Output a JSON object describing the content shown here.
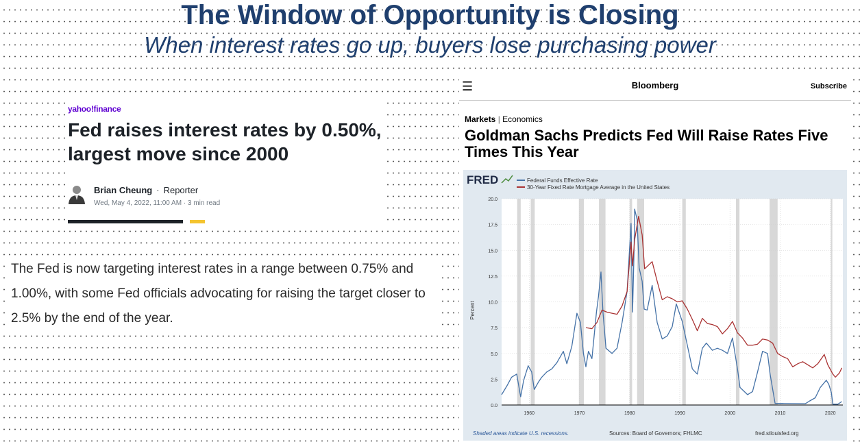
{
  "slide": {
    "title": "The Window of Opportunity is Closing",
    "subtitle": "When interest rates go up, buyers lose purchasing power"
  },
  "yahoo": {
    "logo": "yahoo!finance",
    "headline": "Fed raises interest rates by 0.50%, largest move since 2000",
    "author": "Brian Cheung",
    "sep": "·",
    "role": "Reporter",
    "meta": "Wed, May 4, 2022, 11:00 AM · 3 min read"
  },
  "quote": "The Fed is now targeting interest rates in a range between 0.75% and 1.00%, with some Fed officials advocating for raising the target closer to 2.5% by the end of the year.",
  "bloomberg": {
    "menu_icon": "hamburger-icon",
    "brand": "Bloomberg",
    "subscribe": "Subscribe",
    "section_main": "Markets",
    "section_divider": "|",
    "section_sub": "Economics",
    "headline": "Goldman Sachs Predicts Fed Will Raise Rates Five Times This Year"
  },
  "colors": {
    "title_blue": "#1f3f6e",
    "fed_funds": "#4572a7",
    "mortgage": "#aa3333",
    "recession": "#d8d8d8",
    "chart_bg": "#e1e9f0"
  },
  "chart_data": {
    "type": "line",
    "logo": "FRED",
    "ylabel": "Percent",
    "ylim": [
      0,
      20
    ],
    "xlim": [
      1954.5,
      2022.5
    ],
    "yticks": [
      "0.0",
      "2.5",
      "5.0",
      "7.5",
      "10.0",
      "12.5",
      "15.0",
      "17.5",
      "20.0"
    ],
    "ytick_values": [
      0,
      2.5,
      5,
      7.5,
      10,
      12.5,
      15,
      17.5,
      20
    ],
    "xticks": [
      "1960",
      "1970",
      "1980",
      "1990",
      "2000",
      "2010",
      "2020"
    ],
    "xtick_values": [
      1960,
      1970,
      1980,
      1990,
      2000,
      2010,
      2020
    ],
    "grid": true,
    "legend_position": "top-left",
    "recessions": [
      [
        1957.6,
        1958.3
      ],
      [
        1960.3,
        1961.1
      ],
      [
        1969.9,
        1970.9
      ],
      [
        1973.9,
        1975.2
      ],
      [
        1980.0,
        1980.5
      ],
      [
        1981.5,
        1982.9
      ],
      [
        1990.5,
        1991.2
      ],
      [
        2001.2,
        2001.9
      ],
      [
        2007.9,
        2009.5
      ],
      [
        2020.1,
        2020.4
      ]
    ],
    "series": [
      {
        "name": "Federal Funds Effective Rate",
        "x": [
          1954.5,
          1955.5,
          1956.5,
          1957.5,
          1958.3,
          1958.9,
          1959.8,
          1960.5,
          1961.0,
          1961.8,
          1962.5,
          1963.5,
          1964.5,
          1965.5,
          1966.8,
          1967.5,
          1968.5,
          1969.5,
          1970.2,
          1970.8,
          1971.3,
          1971.8,
          1972.5,
          1973.4,
          1973.8,
          1974.3,
          1974.7,
          1975.3,
          1976.5,
          1977.5,
          1978.5,
          1979.5,
          1980.3,
          1980.6,
          1980.9,
          1981.0,
          1981.5,
          1981.9,
          1982.5,
          1982.9,
          1983.5,
          1984.5,
          1985.5,
          1986.5,
          1987.5,
          1988.5,
          1989.3,
          1990.5,
          1991.5,
          1992.5,
          1993.5,
          1994.5,
          1995.3,
          1996.5,
          1997.5,
          1998.5,
          1999.5,
          2000.5,
          2001.5,
          2002.0,
          2003.5,
          2004.5,
          2005.5,
          2006.5,
          2007.5,
          2008.0,
          2008.7,
          2009.0,
          2010.5,
          2015.0,
          2015.9,
          2017.0,
          2018.0,
          2019.2,
          2019.7,
          2020.2,
          2020.5,
          2021.5,
          2022.3
        ],
        "values": [
          1.0,
          1.8,
          2.7,
          3.0,
          0.8,
          2.4,
          3.8,
          3.2,
          1.5,
          2.2,
          2.7,
          3.2,
          3.5,
          4.1,
          5.2,
          4.0,
          5.7,
          8.9,
          8.0,
          5.0,
          3.7,
          5.2,
          4.5,
          9.0,
          10.5,
          12.9,
          9.0,
          5.5,
          5.0,
          5.5,
          8.0,
          11.0,
          17.6,
          9.0,
          15.0,
          19.0,
          18.0,
          13.3,
          12.0,
          9.3,
          9.2,
          11.6,
          8.0,
          6.4,
          6.7,
          7.6,
          9.8,
          8.1,
          5.8,
          3.5,
          3.0,
          5.5,
          6.0,
          5.3,
          5.5,
          5.3,
          5.0,
          6.5,
          3.5,
          1.7,
          1.0,
          1.3,
          3.2,
          5.2,
          5.0,
          3.0,
          1.0,
          0.15,
          0.15,
          0.12,
          0.4,
          0.7,
          1.7,
          2.4,
          2.0,
          1.2,
          0.08,
          0.08,
          0.33
        ]
      },
      {
        "name": "30-Year Fixed Rate Mortgage Average in the United States",
        "x": [
          1971.3,
          1972.5,
          1973.5,
          1974.5,
          1975.5,
          1976.5,
          1977.5,
          1978.5,
          1979.5,
          1980.3,
          1980.6,
          1981.0,
          1981.8,
          1982.5,
          1983.0,
          1984.5,
          1985.5,
          1986.5,
          1987.5,
          1988.5,
          1989.5,
          1990.5,
          1991.5,
          1992.5,
          1993.5,
          1994.5,
          1995.5,
          1996.5,
          1997.5,
          1998.5,
          1999.5,
          2000.5,
          2001.5,
          2002.5,
          2003.5,
          2004.5,
          2005.5,
          2006.5,
          2007.5,
          2008.5,
          2009.5,
          2010.5,
          2011.5,
          2012.5,
          2013.5,
          2014.5,
          2015.5,
          2016.5,
          2017.5,
          2018.8,
          2019.5,
          2020.5,
          2021.0,
          2021.8,
          2022.3
        ],
        "values": [
          7.5,
          7.4,
          8.0,
          9.2,
          9.0,
          8.9,
          8.8,
          9.6,
          11.0,
          15.8,
          13.5,
          16.0,
          18.3,
          16.5,
          13.2,
          13.9,
          12.0,
          10.2,
          10.5,
          10.3,
          10.0,
          10.1,
          9.3,
          8.3,
          7.2,
          8.4,
          7.9,
          7.8,
          7.6,
          6.9,
          7.4,
          8.1,
          7.0,
          6.5,
          5.8,
          5.8,
          5.9,
          6.4,
          6.3,
          6.0,
          5.0,
          4.7,
          4.5,
          3.7,
          4.0,
          4.2,
          3.9,
          3.6,
          4.0,
          4.9,
          3.9,
          3.0,
          2.7,
          3.1,
          3.6
        ]
      }
    ],
    "footer_left": "Shaded areas indicate U.S. recessions.",
    "footer_mid": "Sources: Board of Governors; FHLMC",
    "footer_right": "fred.stlouisfed.org"
  }
}
